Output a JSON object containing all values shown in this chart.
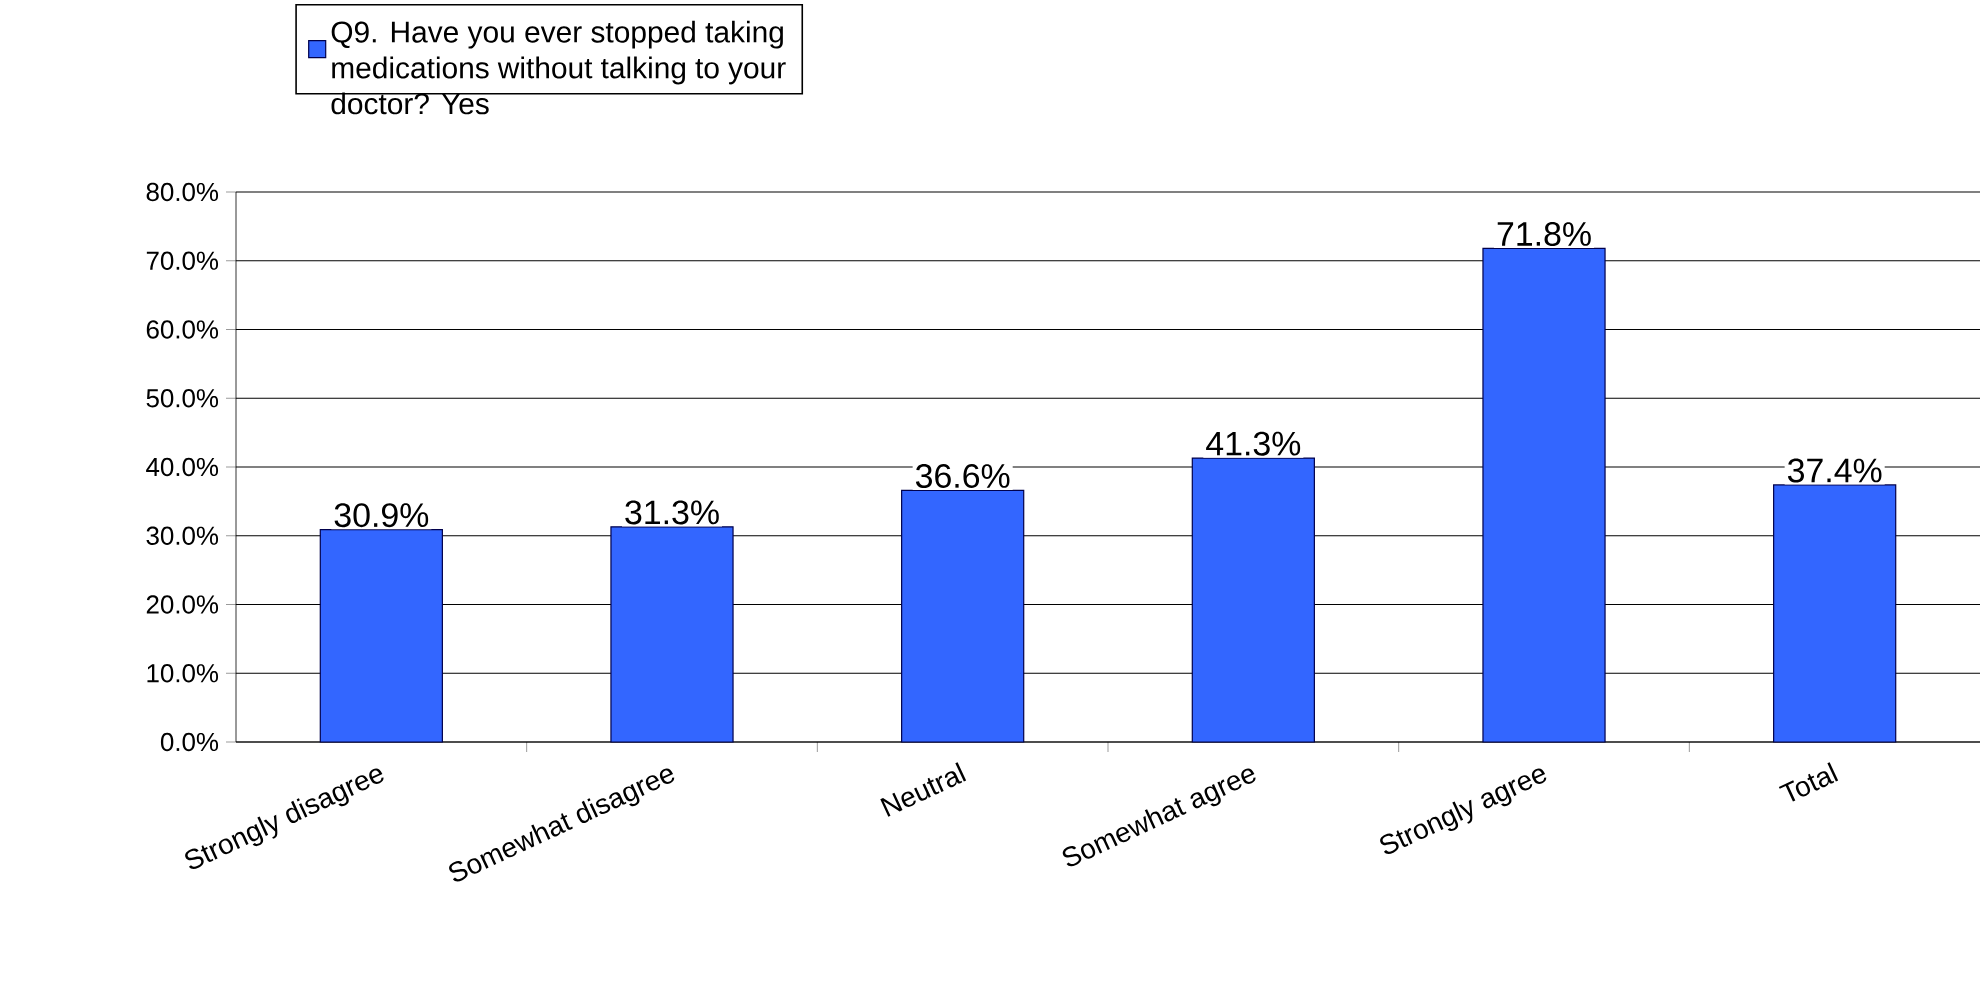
{
  "chart_data": {
    "type": "bar",
    "categories": [
      "Strongly disagree",
      "Somewhat disagree",
      "Neutral",
      "Somewhat agree",
      "Strongly agree",
      "Total"
    ],
    "series": [
      {
        "name": "Q9. Have you ever stopped taking medications without talking to your doctor?  Yes",
        "color": "#3366ff",
        "values": [
          30.9,
          31.3,
          36.6,
          41.3,
          71.8,
          37.4
        ],
        "value_labels": [
          "30.9%",
          "31.3%",
          "36.6%",
          "41.3%",
          "71.8%",
          "37.4%"
        ]
      }
    ],
    "ylim": [
      0,
      80
    ],
    "yticks": [
      {
        "value": 0,
        "label": "0.0%"
      },
      {
        "value": 10,
        "label": "10.0%"
      },
      {
        "value": 20,
        "label": "20.0%"
      },
      {
        "value": 30,
        "label": "30.0%"
      },
      {
        "value": 40,
        "label": "40.0%"
      },
      {
        "value": 50,
        "label": "50.0%"
      },
      {
        "value": 60,
        "label": "60.0%"
      },
      {
        "value": 70,
        "label": "70.0%"
      },
      {
        "value": 80,
        "label": "80.0%"
      }
    ],
    "grid": "y",
    "legend": "top left"
  }
}
